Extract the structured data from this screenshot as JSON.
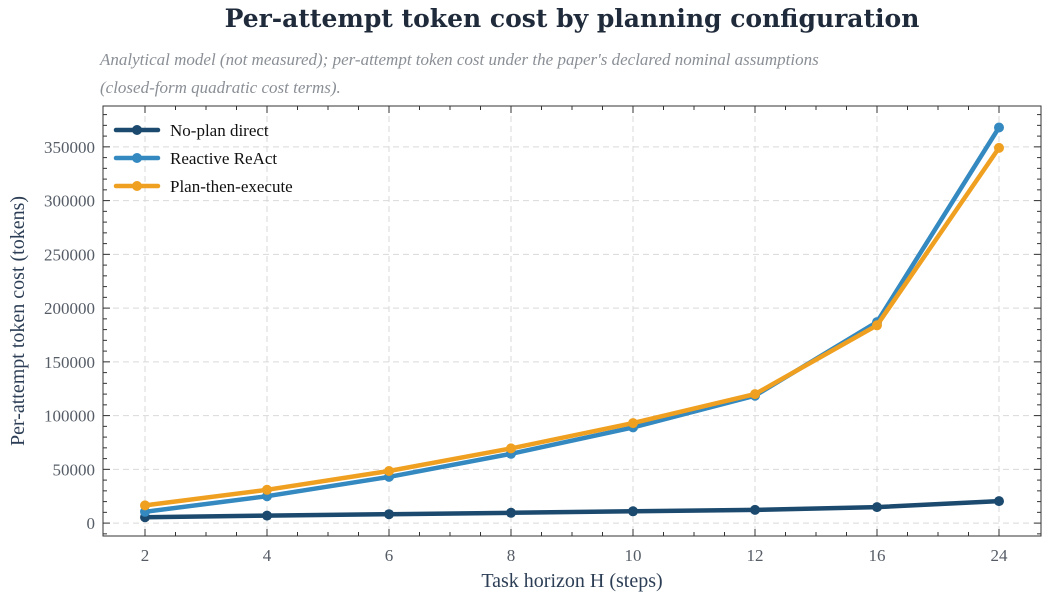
{
  "chart_data": {
    "type": "line",
    "title": "Per-attempt token cost by planning configuration",
    "subtitle_line1": "Analytical model (not measured); per-attempt token cost under the paper's declared nominal assumptions",
    "subtitle_line2": "(closed-form quadratic cost terms).",
    "xlabel": "Task horizon H (steps)",
    "ylabel": "Per-attempt token cost (tokens)",
    "categories": [
      "2",
      "4",
      "6",
      "8",
      "10",
      "12",
      "16",
      "24"
    ],
    "yticks": [
      0,
      50000,
      100000,
      150000,
      200000,
      250000,
      300000,
      350000
    ],
    "ylim": [
      -12000,
      388000
    ],
    "grid": true,
    "legend_position": "top-left",
    "series": [
      {
        "name": "No-plan direct",
        "color": "#1c4a6e",
        "values": [
          5500,
          7000,
          8300,
          9600,
          11000,
          12300,
          14900,
          20500
        ]
      },
      {
        "name": "Reactive ReAct",
        "color": "#3389c0",
        "values": [
          10500,
          25000,
          43000,
          64500,
          89000,
          118500,
          187000,
          368000
        ]
      },
      {
        "name": "Plan-then-execute",
        "color": "#f0a020",
        "values": [
          16500,
          31000,
          48500,
          69500,
          93000,
          120000,
          184000,
          349000
        ]
      }
    ]
  }
}
